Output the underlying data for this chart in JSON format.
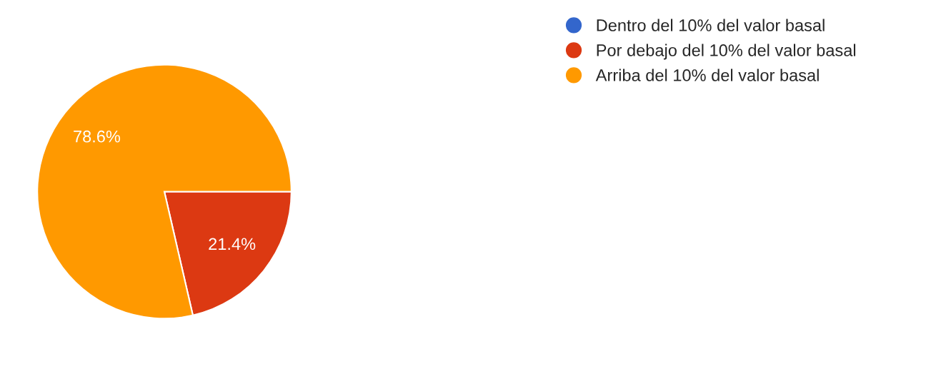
{
  "chart_data": {
    "type": "pie",
    "categories": [
      "Dentro del 10% del valor basal",
      "Por debajo del 10% del valor basal",
      "Arriba del 10% del valor basal"
    ],
    "values": [
      0,
      21.4,
      78.6
    ],
    "colors": [
      "#3366cc",
      "#dc3912",
      "#ff9900"
    ],
    "value_labels": [
      null,
      "21.4%",
      "78.6%"
    ],
    "legend": "top right"
  }
}
